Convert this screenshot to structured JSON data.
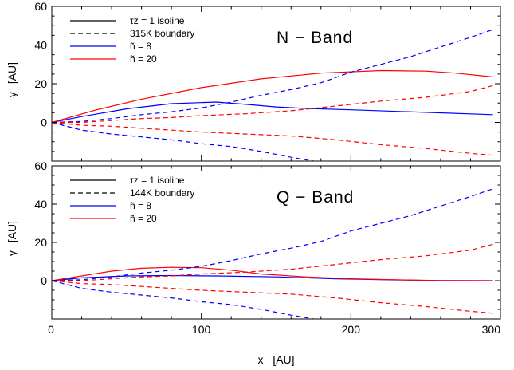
{
  "chart_data": [
    {
      "type": "line",
      "panel": "top",
      "band_label": "N − Band",
      "xlabel": "",
      "ylabel": "y [AU]",
      "xlim": [
        0,
        300
      ],
      "ylim": [
        -20,
        60
      ],
      "xticks": [
        "",
        "",
        "",
        ""
      ],
      "yticks": [
        "0",
        "20",
        "40",
        "60"
      ],
      "legend": [
        {
          "text": "τz = 1 isoline",
          "style": "solid",
          "color": "#000000"
        },
        {
          "text": "315K boundary",
          "style": "dashed",
          "color": "#000000"
        },
        {
          "text": "h̃ = 8",
          "style": "solid",
          "color": "#0000ff"
        },
        {
          "text": "h̃ = 20",
          "style": "solid",
          "color": "#ff0000"
        }
      ],
      "series": [
        {
          "color": "#0000ff",
          "style": "solid",
          "x": [
            0,
            20,
            50,
            80,
            110,
            130,
            150,
            170,
            200,
            250,
            295
          ],
          "y": [
            0,
            3,
            7,
            9.7,
            10.5,
            9.3,
            8,
            7.2,
            6.5,
            5.2,
            4
          ]
        },
        {
          "color": "#ff0000",
          "style": "solid",
          "x": [
            0,
            30,
            60,
            100,
            140,
            180,
            220,
            250,
            270,
            295
          ],
          "y": [
            0,
            6.5,
            12,
            18,
            22.5,
            25.5,
            26.8,
            26.5,
            25.5,
            23.5
          ]
        },
        {
          "color": "#0000ff",
          "style": "dashed",
          "x": [
            0,
            20,
            40,
            60,
            80,
            100,
            120,
            140,
            160,
            180,
            200,
            220,
            240,
            260,
            280,
            295
          ],
          "y": [
            0,
            0.5,
            2,
            4,
            5.5,
            7.5,
            10.5,
            14,
            17,
            20.5,
            26,
            30,
            34,
            39,
            44,
            48
          ]
        },
        {
          "color": "#0000ff",
          "style": "dashed",
          "x": [
            0,
            20,
            40,
            60,
            80,
            100,
            120,
            140,
            160,
            175
          ],
          "y": [
            0,
            -4,
            -6,
            -7.5,
            -9,
            -11,
            -12.5,
            -15,
            -18,
            -20
          ]
        },
        {
          "color": "#ff0000",
          "style": "dashed",
          "x": [
            0,
            20,
            40,
            60,
            80,
            100,
            130,
            160,
            190,
            220,
            250,
            280,
            295
          ],
          "y": [
            0,
            0,
            1,
            2,
            2.5,
            3.5,
            4.5,
            6,
            8.5,
            11,
            13,
            16,
            19
          ]
        },
        {
          "color": "#ff0000",
          "style": "dashed",
          "x": [
            0,
            20,
            40,
            60,
            80,
            100,
            130,
            160,
            190,
            220,
            250,
            280,
            295
          ],
          "y": [
            0,
            -1.5,
            -2,
            -3,
            -4,
            -5,
            -6,
            -7,
            -9,
            -11.5,
            -13.5,
            -16,
            -17
          ]
        }
      ]
    },
    {
      "type": "line",
      "panel": "bottom",
      "band_label": "Q − Band",
      "xlabel": "x [AU]",
      "ylabel": "y [AU]",
      "xlim": [
        0,
        300
      ],
      "ylim": [
        -20,
        60
      ],
      "xticks": [
        "0",
        "100",
        "200",
        "300"
      ],
      "yticks": [
        "0",
        "20",
        "40",
        "60"
      ],
      "legend": [
        {
          "text": "τz = 1 isoline",
          "style": "solid",
          "color": "#000000"
        },
        {
          "text": "144K boundary",
          "style": "dashed",
          "color": "#000000"
        },
        {
          "text": "h̃ = 8",
          "style": "solid",
          "color": "#0000ff"
        },
        {
          "text": "h̃ = 20",
          "style": "solid",
          "color": "#ff0000"
        }
      ],
      "series": [
        {
          "color": "#0000ff",
          "style": "solid",
          "x": [
            0,
            20,
            50,
            80,
            110,
            150,
            190,
            230,
            260,
            295
          ],
          "y": [
            0,
            1.5,
            2.5,
            2.7,
            2.5,
            2,
            1,
            0.4,
            0.1,
            0
          ]
        },
        {
          "color": "#ff0000",
          "style": "solid",
          "x": [
            0,
            20,
            40,
            60,
            80,
            100,
            120,
            140,
            170,
            200,
            230,
            255,
            295
          ],
          "y": [
            0,
            2.5,
            5,
            6.5,
            7,
            6.8,
            5.5,
            3.5,
            2,
            1,
            0.5,
            0.1,
            0
          ]
        },
        {
          "color": "#0000ff",
          "style": "dashed",
          "x": [
            0,
            20,
            40,
            60,
            80,
            100,
            120,
            140,
            160,
            180,
            200,
            220,
            240,
            260,
            280,
            295
          ],
          "y": [
            0,
            0.5,
            2,
            4,
            5.5,
            7.5,
            10.5,
            14,
            17,
            20.5,
            26,
            30,
            34,
            39,
            44,
            48
          ]
        },
        {
          "color": "#0000ff",
          "style": "dashed",
          "x": [
            0,
            20,
            40,
            60,
            80,
            100,
            120,
            140,
            160,
            175
          ],
          "y": [
            0,
            -4,
            -6,
            -7.5,
            -9,
            -11,
            -12.5,
            -15,
            -18,
            -20
          ]
        },
        {
          "color": "#ff0000",
          "style": "dashed",
          "x": [
            0,
            20,
            40,
            60,
            80,
            100,
            130,
            160,
            190,
            220,
            250,
            280,
            295
          ],
          "y": [
            0,
            0,
            1,
            2,
            2.5,
            3.5,
            4.5,
            6,
            8.5,
            11,
            13,
            16,
            19
          ]
        },
        {
          "color": "#ff0000",
          "style": "dashed",
          "x": [
            0,
            20,
            40,
            60,
            80,
            100,
            130,
            160,
            190,
            220,
            250,
            280,
            295
          ],
          "y": [
            0,
            -1.5,
            -2,
            -3,
            -4,
            -5,
            -6,
            -7,
            -9,
            -11.5,
            -13.5,
            -16,
            -17
          ]
        }
      ]
    }
  ]
}
